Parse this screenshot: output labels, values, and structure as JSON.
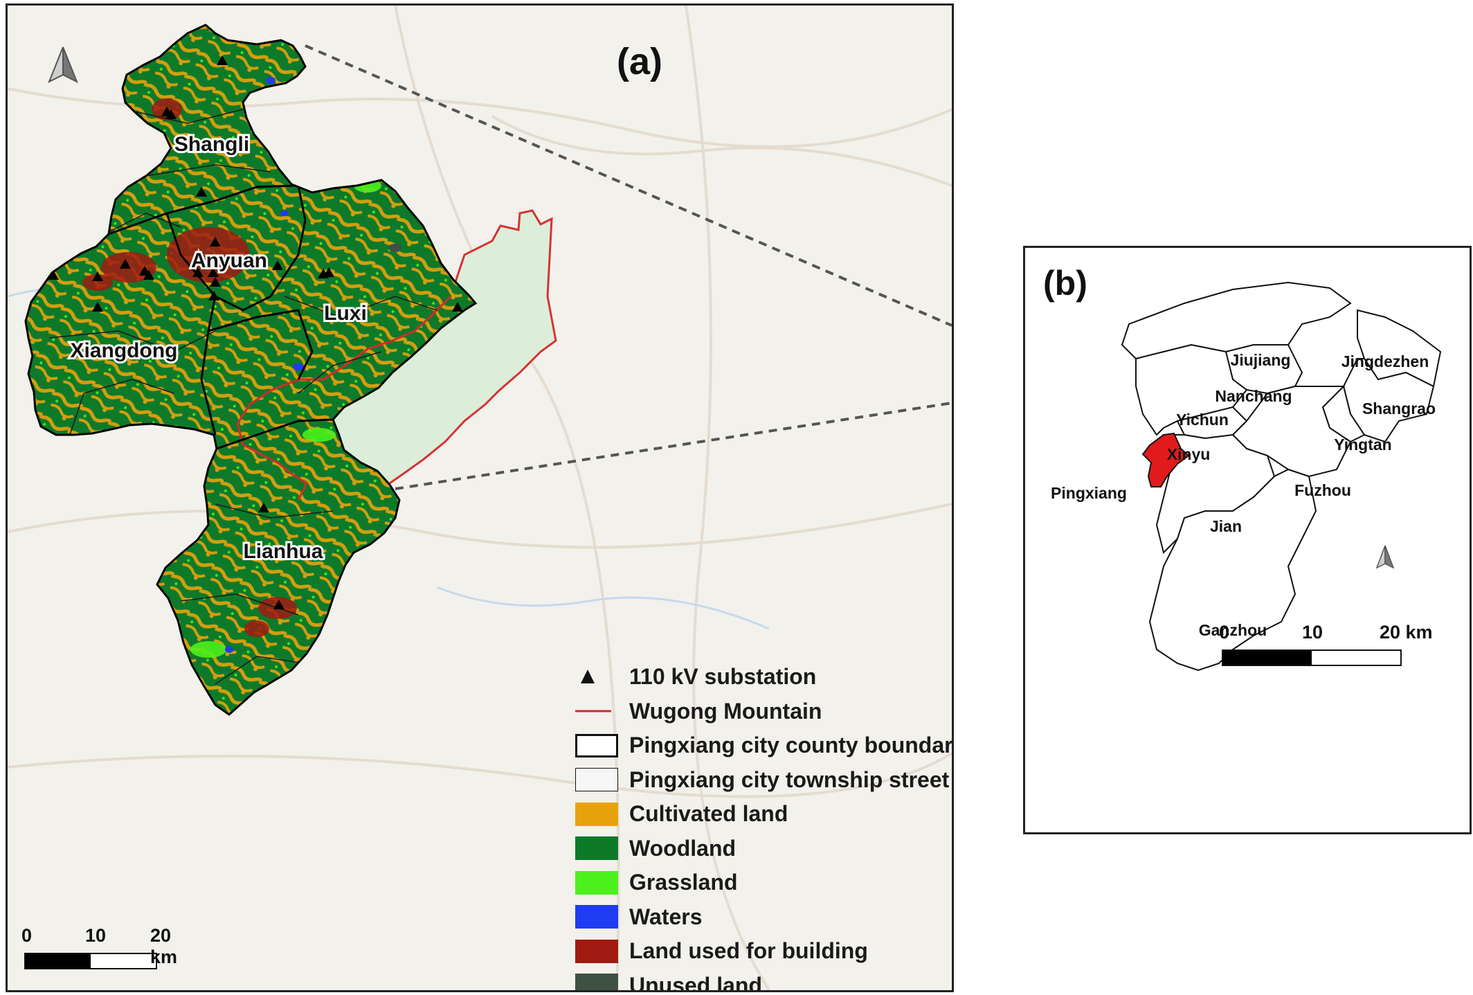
{
  "panel_a": {
    "label": "(a)",
    "counties": [
      "Shangli",
      "Anyuan",
      "Luxi",
      "Xiangdong",
      "Lianhua"
    ],
    "legend": [
      {
        "text": "110 kV substation",
        "color": "#111111",
        "symbol": "triangle"
      },
      {
        "text": "Wugong Mountain",
        "color": "#d42a2a",
        "symbol": "line"
      },
      {
        "text": "Pingxiang city county boundary",
        "color": "#111111",
        "symbol": "thick-outline"
      },
      {
        "text": "Pingxiang city township street",
        "color": "#111111",
        "symbol": "thin-outline"
      },
      {
        "text": "Cultivated land",
        "color": "#e8a20c",
        "symbol": "fill"
      },
      {
        "text": "Woodland",
        "color": "#0d7a2a",
        "symbol": "fill"
      },
      {
        "text": "Grassland",
        "color": "#4cf01c",
        "symbol": "fill"
      },
      {
        "text": "Waters",
        "color": "#1f3cf2",
        "symbol": "fill"
      },
      {
        "text": "Land used for building",
        "color": "#a11b12",
        "symbol": "fill"
      },
      {
        "text": "Unused land",
        "color": "#3e5143",
        "symbol": "fill"
      }
    ],
    "scale": {
      "labels": [
        "0",
        "10",
        "20 km"
      ]
    },
    "north_arrow": "north-arrow-icon"
  },
  "panel_b": {
    "label": "(b)",
    "regions": [
      "Jiujiang",
      "Jingdezhen",
      "Nanchang",
      "Shangrao",
      "Yichun",
      "Yingtan",
      "Xinyu",
      "Pingxiang",
      "Fuzhou",
      "Jian",
      "Ganzhou"
    ],
    "highlight": "Pingxiang",
    "highlight_color": "#e11b1b",
    "scale": {
      "labels": [
        "0",
        "10",
        "20 km"
      ]
    },
    "north_arrow": "north-arrow-icon"
  }
}
